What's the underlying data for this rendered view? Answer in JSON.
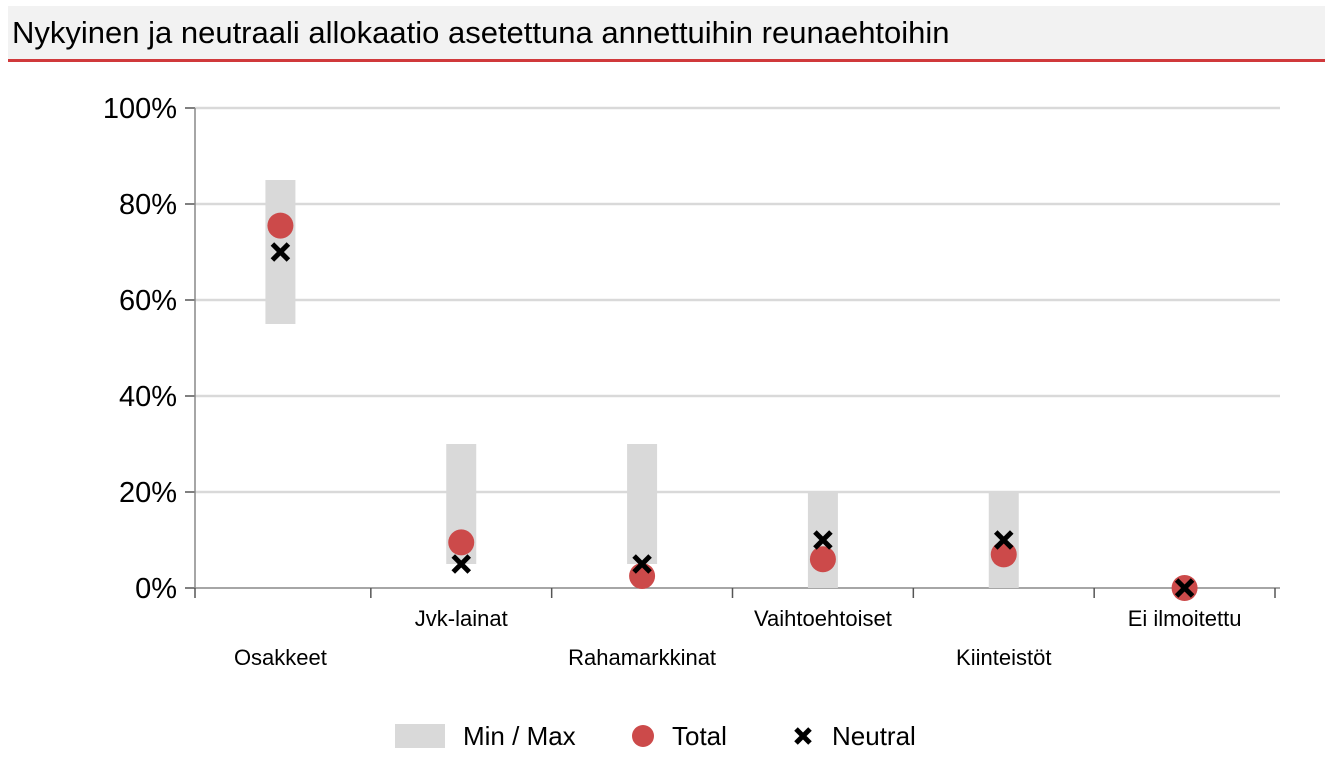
{
  "title": "Nykyinen ja neutraali allokaatio asetettuna annettuihin reunaehtoihin",
  "colors": {
    "accent": "#d0393b",
    "range_bar": "#d9d9d9",
    "total": "#cc4a4a",
    "neutral": "#000000",
    "grid": "#d9d9d9",
    "title_bg": "#f2f2f2"
  },
  "legend": {
    "minmax": "Min / Max",
    "total": "Total",
    "neutral": "Neutral"
  },
  "chart_data": {
    "type": "scatter",
    "title": "Nykyinen ja neutraali allokaatio asetettuna annettuihin reunaehtoihin",
    "xlabel": "",
    "ylabel": "",
    "ylim": [
      0,
      100
    ],
    "y_ticks": [
      "0%",
      "20%",
      "40%",
      "60%",
      "80%",
      "100%"
    ],
    "y_tick_values": [
      0,
      20,
      40,
      60,
      80,
      100
    ],
    "grid": true,
    "legend_position": "bottom",
    "categories": [
      "Osakkeet",
      "Jvk-lainat",
      "Rahamarkkinat",
      "Vaihtoehtoiset",
      "Kiinteistöt",
      "Ei ilmoitettu"
    ],
    "series": [
      {
        "name": "Min / Max",
        "kind": "range",
        "min": [
          55,
          5,
          5,
          0,
          0,
          0
        ],
        "max": [
          85,
          30,
          30,
          20,
          20,
          0
        ]
      },
      {
        "name": "Total",
        "kind": "dot",
        "values": [
          75.5,
          9.5,
          2.5,
          6,
          7,
          0
        ]
      },
      {
        "name": "Neutral",
        "kind": "cross",
        "values": [
          70,
          5,
          5,
          10,
          10,
          0
        ]
      }
    ]
  }
}
